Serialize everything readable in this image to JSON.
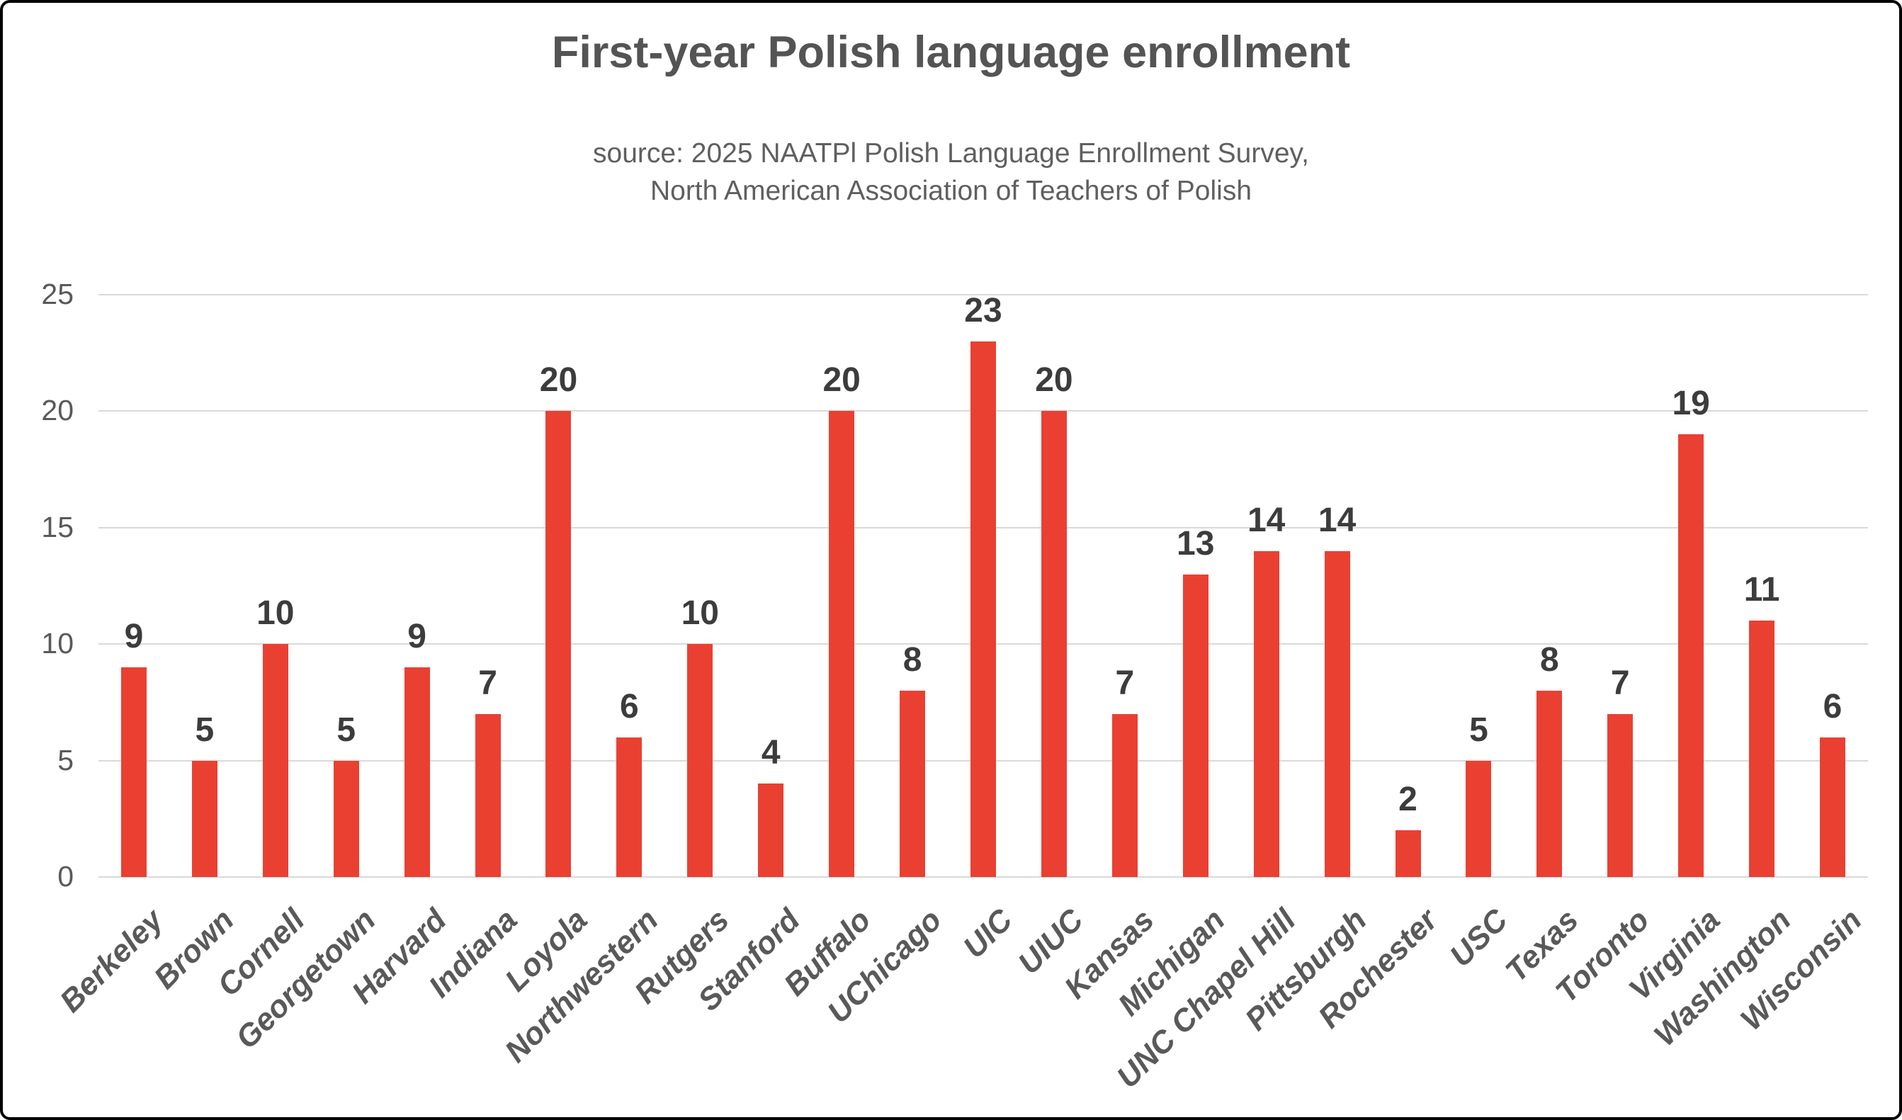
{
  "title": "First-year Polish language enrollment",
  "subtitle_line1": "source: 2025 NAATPl Polish Language Enrollment Survey,",
  "subtitle_line2": "North American Association of Teachers of Polish",
  "colors": {
    "bar": "#ea4032",
    "title_text": "#545454",
    "subtitle_text": "#5f5f5f",
    "axis_text": "#595959",
    "value_label_text": "#3c3c3c",
    "gridline": "#d9d9d9",
    "background": "#ffffff",
    "border": "#000000"
  },
  "chart_data": {
    "type": "bar",
    "title": "First-year Polish language enrollment",
    "subtitle": "source: 2025 NAATPl Polish Language Enrollment Survey, North American Association of Teachers of Polish",
    "categories": [
      "Berkeley",
      "Brown",
      "Cornell",
      "Georgetown",
      "Harvard",
      "Indiana",
      "Loyola",
      "Northwestern",
      "Rutgers",
      "Stanford",
      "Buffalo",
      "UChicago",
      "UIC",
      "UIUC",
      "Kansas",
      "Michigan",
      "UNC Chapel Hill",
      "Pittsburgh",
      "Rochester",
      "USC",
      "Texas",
      "Toronto",
      "Virginia",
      "Washington",
      "Wisconsin"
    ],
    "values": [
      9,
      5,
      10,
      5,
      9,
      7,
      20,
      6,
      10,
      4,
      20,
      8,
      23,
      20,
      7,
      13,
      14,
      14,
      2,
      5,
      8,
      7,
      19,
      11,
      6
    ],
    "xlabel": "",
    "ylabel": "",
    "ylim": [
      0,
      25
    ],
    "yticks": [
      0,
      5,
      10,
      15,
      20,
      25
    ],
    "grid": true,
    "legend_position": "none",
    "bar_color": "#ea4032",
    "data_labels": true,
    "x_label_rotation_deg": 45
  }
}
